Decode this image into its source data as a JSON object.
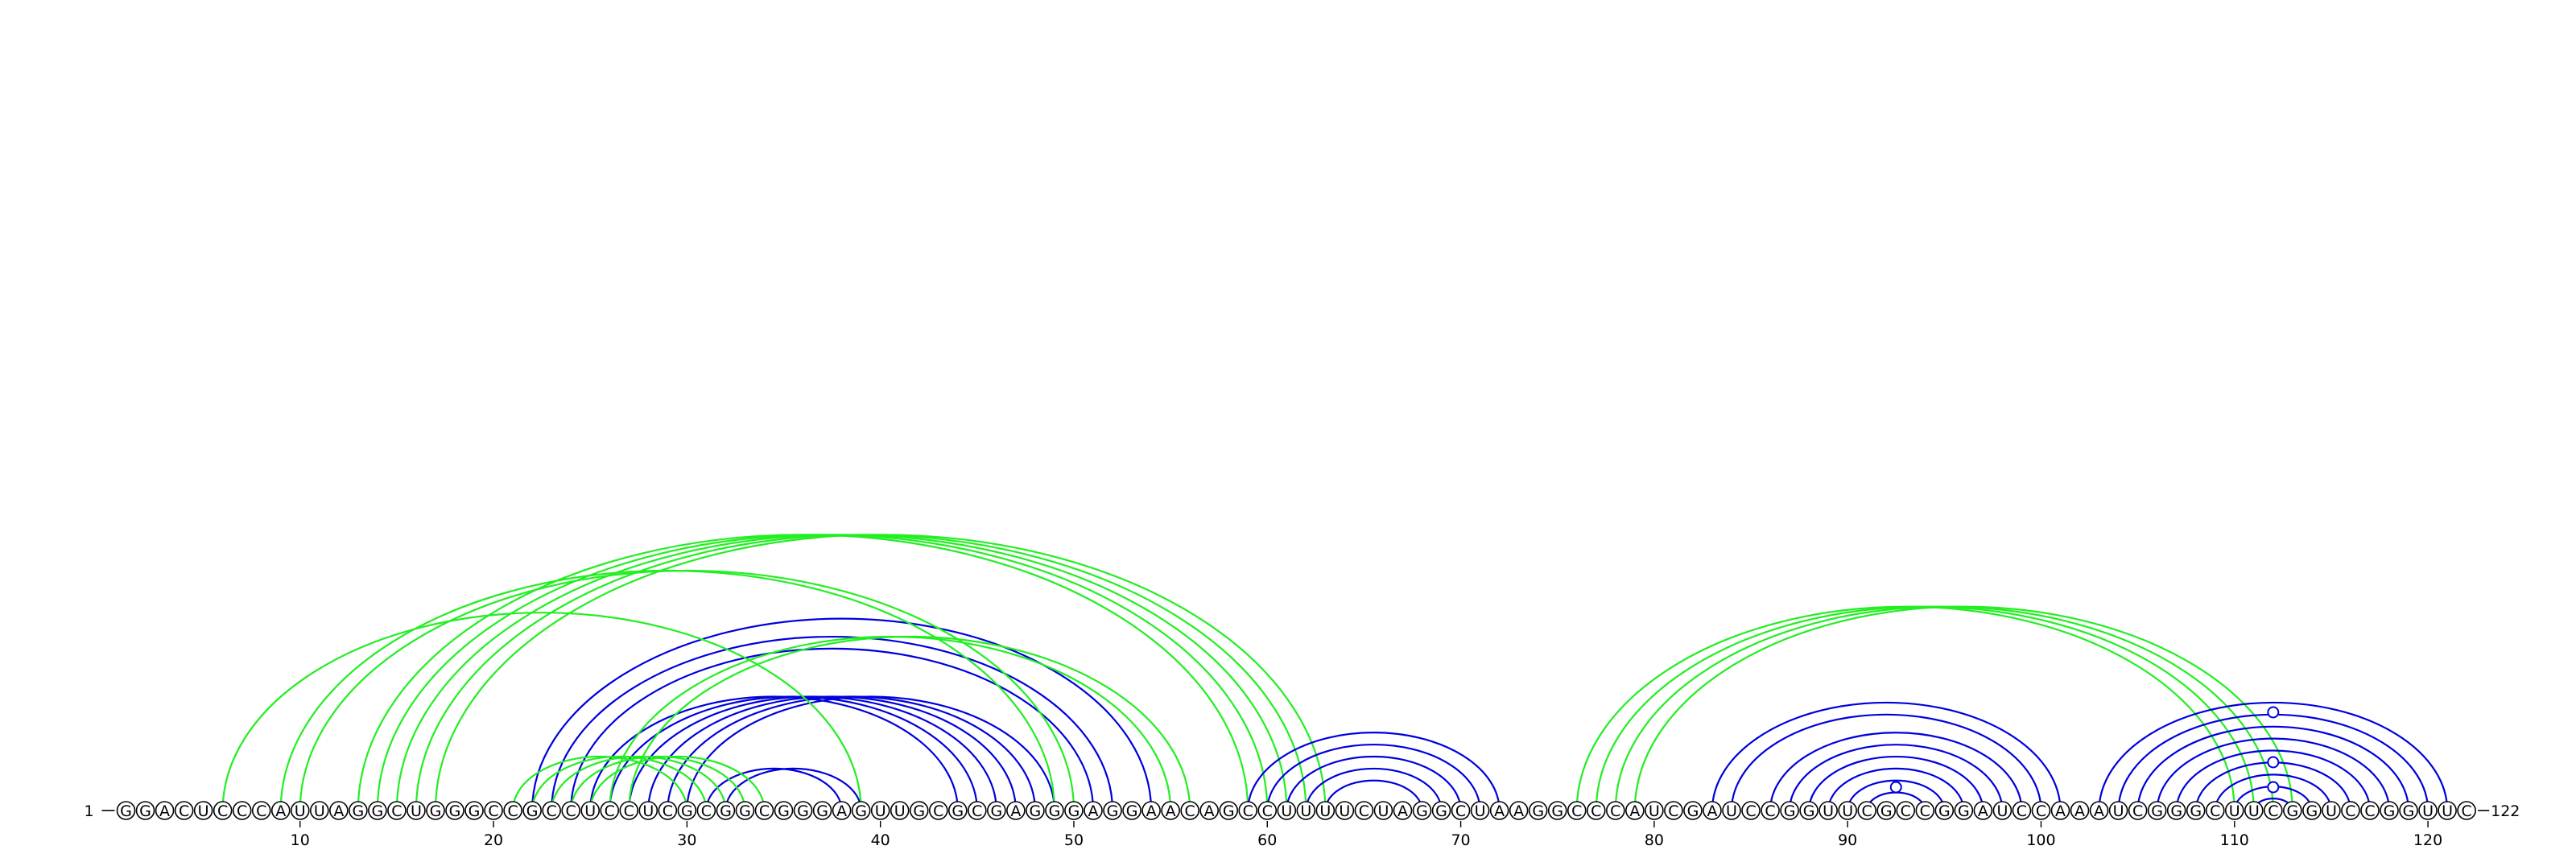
{
  "sequence": "GGACUCCCAUUAGGCUGGGCCGCCUCCUCGCGGCGGGAGUUGCGCGAGGGAGGAACAGCCUUUUCUAGGCUAAGGCCCAUCGAUCCGGUUCGCCGGAUCCAAAUCGGGCUUCGGUCCGGUUC",
  "start_label": "1",
  "end_label": "122",
  "tick_positions": [
    10,
    20,
    30,
    40,
    50,
    60,
    70,
    80,
    90,
    100,
    110,
    120
  ],
  "colors": {
    "blue": "#0000dd",
    "green": "#22ee22",
    "marker": "#0000dd"
  },
  "arcs": [
    {
      "color": "blue",
      "i": 31,
      "j": 38
    },
    {
      "color": "blue",
      "i": 32,
      "j": 39
    },
    {
      "color": "blue",
      "i": 25,
      "j": 44
    },
    {
      "color": "blue",
      "i": 26,
      "j": 45
    },
    {
      "color": "blue",
      "i": 27,
      "j": 46
    },
    {
      "color": "blue",
      "i": 28,
      "j": 47
    },
    {
      "color": "blue",
      "i": 29,
      "j": 48
    },
    {
      "color": "blue",
      "i": 30,
      "j": 49
    },
    {
      "color": "blue",
      "i": 24,
      "j": 51
    },
    {
      "color": "blue",
      "i": 23,
      "j": 52
    },
    {
      "color": "blue",
      "i": 22,
      "j": 54
    },
    {
      "color": "green",
      "i": 21,
      "j": 30
    },
    {
      "color": "green",
      "i": 22,
      "j": 31
    },
    {
      "color": "green",
      "i": 23,
      "j": 32
    },
    {
      "color": "green",
      "i": 24,
      "j": 33
    },
    {
      "color": "green",
      "i": 25,
      "j": 34
    },
    {
      "color": "green",
      "i": 26,
      "j": 55
    },
    {
      "color": "green",
      "i": 27,
      "j": 56
    },
    {
      "color": "green",
      "i": 6,
      "j": 39
    },
    {
      "color": "green",
      "i": 9,
      "j": 49
    },
    {
      "color": "green",
      "i": 10,
      "j": 50
    },
    {
      "color": "green",
      "i": 13,
      "j": 59
    },
    {
      "color": "green",
      "i": 14,
      "j": 60
    },
    {
      "color": "green",
      "i": 15,
      "j": 61
    },
    {
      "color": "green",
      "i": 16,
      "j": 62
    },
    {
      "color": "green",
      "i": 17,
      "j": 63
    },
    {
      "color": "blue",
      "i": 59,
      "j": 72
    },
    {
      "color": "blue",
      "i": 60,
      "j": 71
    },
    {
      "color": "blue",
      "i": 61,
      "j": 70
    },
    {
      "color": "blue",
      "i": 62,
      "j": 69
    },
    {
      "color": "blue",
      "i": 63,
      "j": 68
    },
    {
      "color": "green",
      "i": 76,
      "j": 110
    },
    {
      "color": "green",
      "i": 77,
      "j": 111
    },
    {
      "color": "green",
      "i": 78,
      "j": 112
    },
    {
      "color": "green",
      "i": 79,
      "j": 113
    },
    {
      "color": "blue",
      "i": 83,
      "j": 101
    },
    {
      "color": "blue",
      "i": 84,
      "j": 100
    },
    {
      "color": "blue",
      "i": 86,
      "j": 99
    },
    {
      "color": "blue",
      "i": 87,
      "j": 98
    },
    {
      "color": "blue",
      "i": 88,
      "j": 97
    },
    {
      "color": "blue",
      "i": 89,
      "j": 96
    },
    {
      "color": "blue",
      "i": 90,
      "j": 95
    },
    {
      "color": "blue",
      "i": 91,
      "j": 94
    },
    {
      "color": "blue",
      "i": 103,
      "j": 121
    },
    {
      "color": "blue",
      "i": 104,
      "j": 120
    },
    {
      "color": "blue",
      "i": 105,
      "j": 119
    },
    {
      "color": "blue",
      "i": 106,
      "j": 118
    },
    {
      "color": "blue",
      "i": 107,
      "j": 117
    },
    {
      "color": "blue",
      "i": 108,
      "j": 116
    },
    {
      "color": "blue",
      "i": 109,
      "j": 115
    },
    {
      "color": "blue",
      "i": 110,
      "j": 114
    },
    {
      "color": "blue",
      "i": 111,
      "j": 113
    }
  ],
  "markers": [
    {
      "position": 92.5,
      "level": 1
    },
    {
      "position": 112,
      "level": 1
    },
    {
      "position": 112,
      "level": 2
    },
    {
      "position": 112,
      "level": 4
    }
  ]
}
